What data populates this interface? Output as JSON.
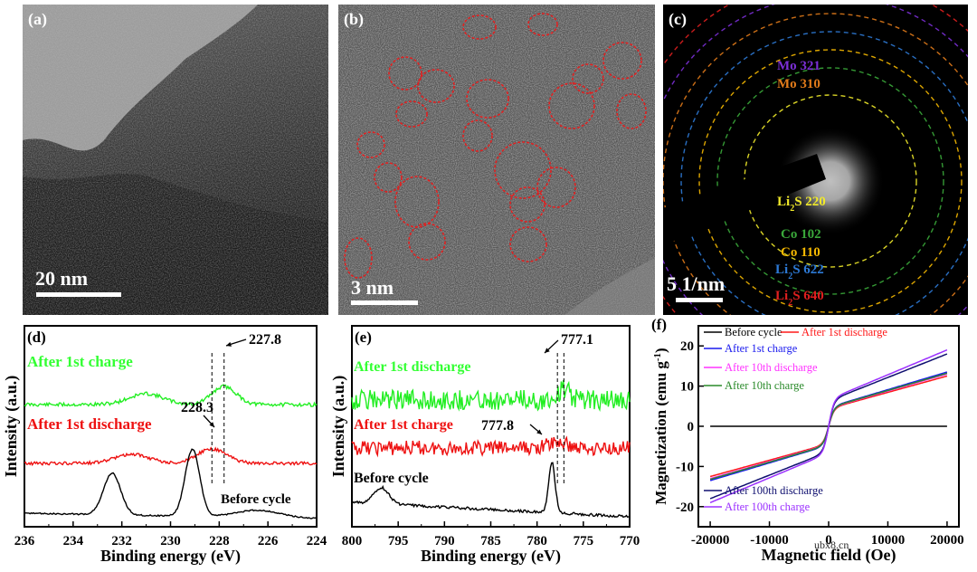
{
  "panels": {
    "a": {
      "letter": "(a)",
      "scale": "20 nm"
    },
    "b": {
      "letter": "(b)",
      "scale": "3 nm"
    },
    "c": {
      "letter": "(c)",
      "scale": "5 1/nm",
      "rings": [
        {
          "label": "Mo  321",
          "color": "#7b2fd6",
          "r": 205
        },
        {
          "label": "Mo 310",
          "color": "#e07a1a",
          "r": 185
        },
        {
          "label": "Li2S 220",
          "html": [
            "Li",
            "2",
            "S 220"
          ],
          "color": "#f1ea2a",
          "r": 95
        },
        {
          "label": "Co  102",
          "color": "#3aa83a",
          "r": 125
        },
        {
          "label": "Co  110",
          "color": "#f5b800",
          "r": 145
        },
        {
          "label": "Li2S 622",
          "html": [
            "Li",
            "2",
            "S 622"
          ],
          "color": "#2d7ad6",
          "r": 165
        },
        {
          "label": "Li2S  640",
          "html": [
            "Li",
            "2",
            "S  640"
          ],
          "color": "#e01f1f",
          "r": 225
        }
      ]
    }
  },
  "chart_data": [
    {
      "id": "d",
      "type": "line",
      "letter": "(d)",
      "xlabel": "Binding energy (eV)",
      "ylabel": "Intensity (a.u.)",
      "xlim": [
        236,
        224
      ],
      "xticks": [
        236,
        234,
        232,
        230,
        228,
        226,
        224
      ],
      "series": [
        {
          "name": "After 1st charge",
          "color": "#22ee22"
        },
        {
          "name": "After 1st discharge",
          "color": "#ee1111"
        },
        {
          "name": "Before cycle",
          "color": "#000000"
        }
      ],
      "annotations": [
        "227.8",
        "228.3"
      ],
      "dashed_lines": [
        228.3,
        227.8
      ]
    },
    {
      "id": "e",
      "type": "line",
      "letter": "(e)",
      "xlabel": "Binding energy (eV)",
      "ylabel": "Intensity (a.u.)",
      "xlim": [
        800,
        770
      ],
      "xticks": [
        800,
        795,
        790,
        785,
        780,
        775,
        770
      ],
      "series": [
        {
          "name": "After 1st discharge",
          "color": "#22ee22"
        },
        {
          "name": "After 1st charge",
          "color": "#ee1111"
        },
        {
          "name": "Before cycle",
          "color": "#000000"
        }
      ],
      "annotations": [
        "777.1",
        "777.8"
      ],
      "dashed_lines": [
        777.8,
        777.1
      ]
    },
    {
      "id": "f",
      "type": "line",
      "letter": "(f)",
      "xlabel": "Magnetic field (Oe)",
      "ylabel": "Magnetization (emu g-1)",
      "xlim": [
        -20000,
        20000
      ],
      "ylim": [
        -25,
        25
      ],
      "xticks": [
        -20000,
        -10000,
        0,
        10000,
        20000
      ],
      "yticks": [
        -20,
        -10,
        0,
        10,
        20
      ],
      "series": [
        {
          "name": "Before cycle",
          "color": "#000000",
          "ms": 0.0
        },
        {
          "name": "After 1st discharge",
          "color": "#ff1a1a",
          "ms": 12.5
        },
        {
          "name": "After 1st charge",
          "color": "#1a1aee",
          "ms": 13.5
        },
        {
          "name": "After 10th discharge",
          "color": "#ff33ff",
          "ms": 13.0
        },
        {
          "name": "After 10th charge",
          "color": "#2a8a2a",
          "ms": 13.2
        },
        {
          "name": "After 100th discharge",
          "color": "#101070",
          "ms": 18.0
        },
        {
          "name": "After 100th charge",
          "color": "#9b30ff",
          "ms": 19.0
        }
      ]
    }
  ],
  "watermark": "ubx8.cn"
}
